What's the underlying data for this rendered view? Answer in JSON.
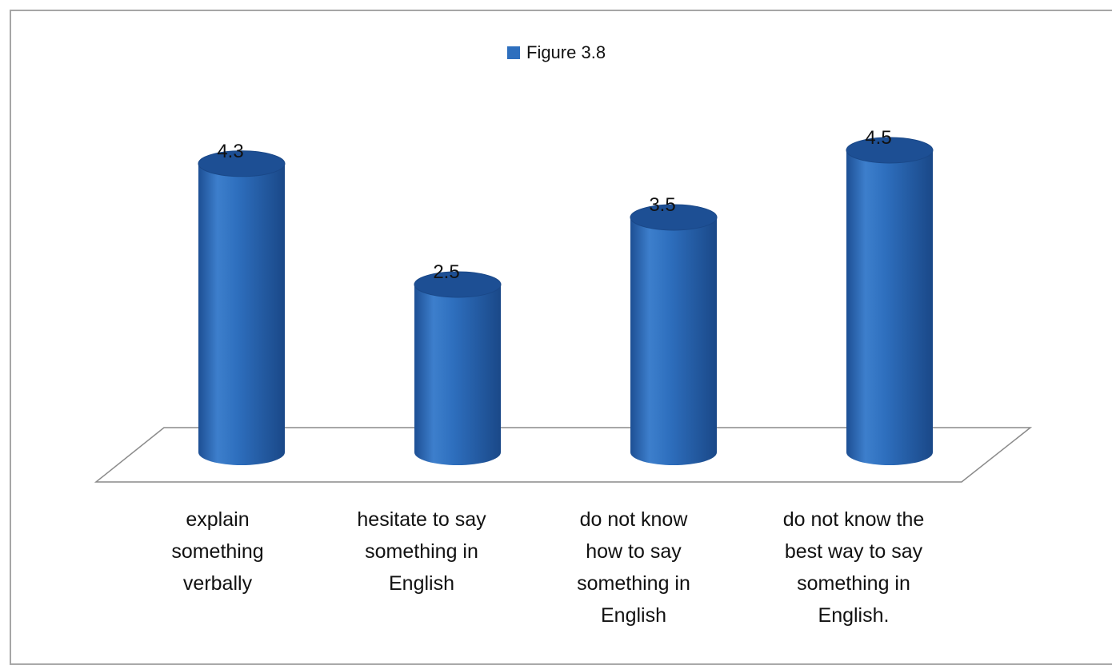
{
  "chart_data": {
    "type": "bar",
    "style": "3d-cylinder",
    "categories": [
      [
        "explain",
        "something",
        "verbally"
      ],
      [
        "hesitate to say",
        "something in",
        "English"
      ],
      [
        "do not know",
        "how to say",
        "something in",
        "English"
      ],
      [
        "do not know the",
        "best way to say",
        "something in",
        "English."
      ]
    ],
    "series": [
      {
        "name": "Figure 3.8",
        "values": [
          4.3,
          2.5,
          3.5,
          4.5
        ]
      }
    ],
    "data_labels": [
      "4.3",
      "2.5",
      "3.5",
      "4.5"
    ],
    "legend": {
      "position": "top",
      "label": "Figure 3.8"
    },
    "grid": false,
    "color": "#2e6fbe",
    "color_dark": "#1d4f94",
    "ylim": [
      0,
      5
    ]
  }
}
